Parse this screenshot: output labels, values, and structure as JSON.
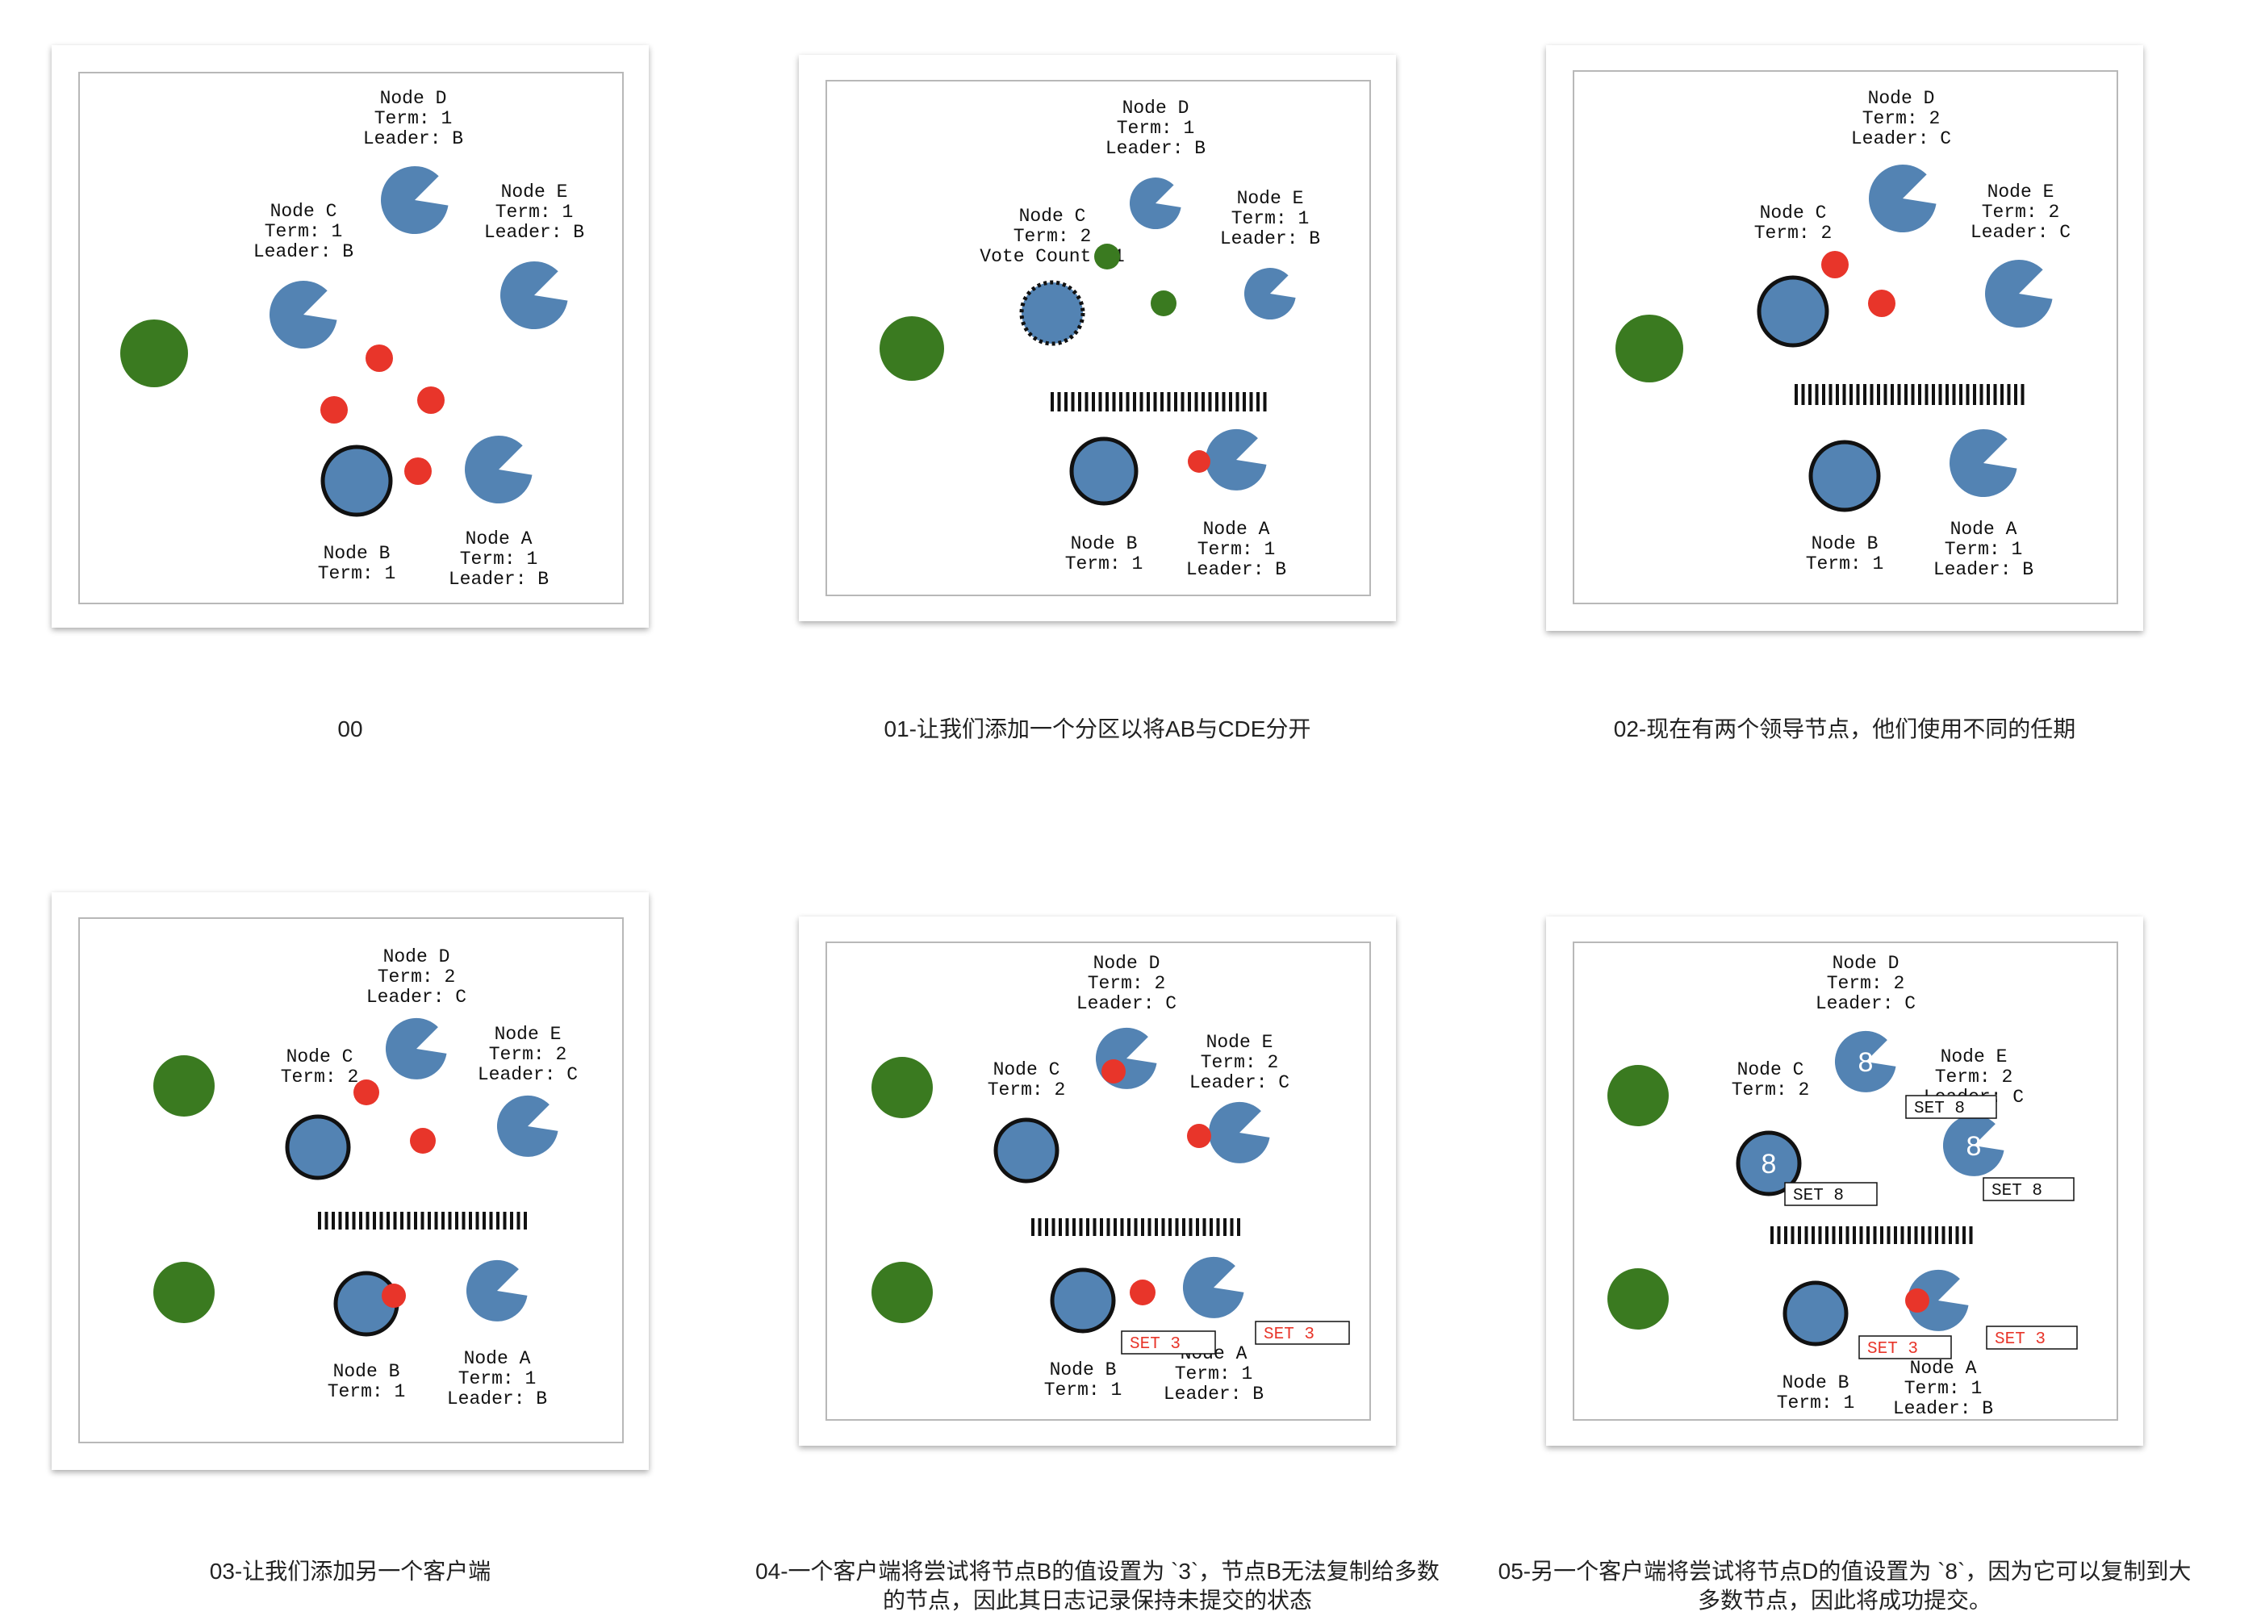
{
  "colors": {
    "follower": "#5383b3",
    "client": "#3a7a20",
    "message": "#e8352a",
    "node_stroke": "#111111",
    "uncommitted_entry": "#e8352a",
    "committed_entry": "#111111",
    "frame": "#b8b8b8"
  },
  "captions": [
    "00",
    "01-让我们添加一个分区以将AB与CDE分开",
    "02-现在有两个领导节点，他们使用不同的任期",
    "03-让我们添加另一个客户端",
    "04-一个客户端将尝试将节点B的值设置为 `3`，节点B无法复制给多数\n的节点，因此其日志记录保持未提交的状态",
    "05-另一个客户端将尝试将节点D的值设置为 `8`，因为它可以复制到大\n多数节点，因此将成功提交。"
  ],
  "panels": [
    {
      "nodes": [
        {
          "name": "Node D",
          "lines": [
            "Node D",
            "Term: 1",
            "Leader: B"
          ]
        },
        {
          "name": "Node C",
          "lines": [
            "Node C",
            "Term: 1",
            "Leader: B"
          ]
        },
        {
          "name": "Node E",
          "lines": [
            "Node E",
            "Term: 1",
            "Leader: B"
          ]
        },
        {
          "name": "Node B",
          "lines": [
            "Node B",
            "Term: 1"
          ]
        },
        {
          "name": "Node A",
          "lines": [
            "Node A",
            "Term: 1",
            "Leader: B"
          ]
        }
      ],
      "log_entries": []
    },
    {
      "nodes": [
        {
          "name": "Node D",
          "lines": [
            "Node D",
            "Term: 1",
            "Leader: B"
          ]
        },
        {
          "name": "Node C",
          "lines": [
            "Node C",
            "Term: 2",
            "Vote Count: 1"
          ]
        },
        {
          "name": "Node E",
          "lines": [
            "Node E",
            "Term: 1",
            "Leader: B"
          ]
        },
        {
          "name": "Node B",
          "lines": [
            "Node B",
            "Term: 1"
          ]
        },
        {
          "name": "Node A",
          "lines": [
            "Node A",
            "Term: 1",
            "Leader: B"
          ]
        }
      ],
      "log_entries": []
    },
    {
      "nodes": [
        {
          "name": "Node D",
          "lines": [
            "Node D",
            "Term: 2",
            "Leader: C"
          ]
        },
        {
          "name": "Node C",
          "lines": [
            "Node C",
            "Term: 2"
          ]
        },
        {
          "name": "Node E",
          "lines": [
            "Node E",
            "Term: 2",
            "Leader: C"
          ]
        },
        {
          "name": "Node B",
          "lines": [
            "Node B",
            "Term: 1"
          ]
        },
        {
          "name": "Node A",
          "lines": [
            "Node A",
            "Term: 1",
            "Leader: B"
          ]
        }
      ],
      "log_entries": []
    },
    {
      "nodes": [
        {
          "name": "Node D",
          "lines": [
            "Node D",
            "Term: 2",
            "Leader: C"
          ]
        },
        {
          "name": "Node C",
          "lines": [
            "Node C",
            "Term: 2"
          ]
        },
        {
          "name": "Node E",
          "lines": [
            "Node E",
            "Term: 2",
            "Leader: C"
          ]
        },
        {
          "name": "Node B",
          "lines": [
            "Node B",
            "Term: 1"
          ]
        },
        {
          "name": "Node A",
          "lines": [
            "Node A",
            "Term: 1",
            "Leader: B"
          ]
        }
      ],
      "log_entries": []
    },
    {
      "nodes": [
        {
          "name": "Node D",
          "lines": [
            "Node D",
            "Term: 2",
            "Leader: C"
          ]
        },
        {
          "name": "Node C",
          "lines": [
            "Node C",
            "Term: 2"
          ]
        },
        {
          "name": "Node E",
          "lines": [
            "Node E",
            "Term: 2",
            "Leader: C"
          ]
        },
        {
          "name": "Node B",
          "lines": [
            "Node B",
            "Term: 1"
          ]
        },
        {
          "name": "Node A",
          "lines": [
            "Node A",
            "Term: 1",
            "Leader: B"
          ]
        }
      ],
      "log_entries": [
        "SET 3",
        "SET 3"
      ]
    },
    {
      "nodes": [
        {
          "name": "Node D",
          "lines": [
            "Node D",
            "Term: 2",
            "Leader: C"
          ],
          "value": "8"
        },
        {
          "name": "Node C",
          "lines": [
            "Node C",
            "Term: 2"
          ],
          "value": "8"
        },
        {
          "name": "Node E",
          "lines": [
            "Node E",
            "Term: 2",
            "Leader: C"
          ],
          "value": "8"
        },
        {
          "name": "Node B",
          "lines": [
            "Node B",
            "Term: 1"
          ]
        },
        {
          "name": "Node A",
          "lines": [
            "Node A",
            "Term: 1",
            "Leader: B"
          ]
        }
      ],
      "log_entries": [
        "SET 8",
        "SET 8",
        "SET 8",
        "SET 3",
        "SET 3"
      ]
    }
  ]
}
